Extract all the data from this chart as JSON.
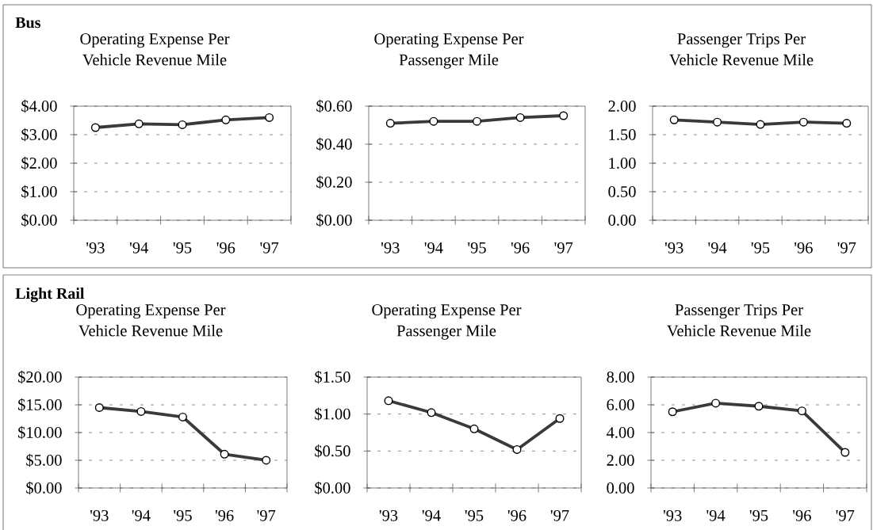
{
  "chart_data": [
    {
      "type": "line",
      "title": "Operating Expense Per Vehicle Revenue Mile",
      "annotations": [
        "Bus"
      ],
      "categories": [
        "'93",
        "'94",
        "'95",
        "'96",
        "'97"
      ],
      "values": [
        3.25,
        3.38,
        3.35,
        3.52,
        3.6
      ],
      "color": "#3a3a3a",
      "ylim": [
        0,
        4
      ],
      "yticks": [
        {
          "value": 0,
          "label": "$0.00"
        },
        {
          "value": 1,
          "label": "$1.00"
        },
        {
          "value": 2,
          "label": "$2.00"
        },
        {
          "value": 3,
          "label": "$3.00"
        },
        {
          "value": 4,
          "label": "$4.00"
        }
      ],
      "grid": "y",
      "marker": "circle"
    },
    {
      "type": "line",
      "title": "Operating Expense Per Passenger Mile",
      "categories": [
        "'93",
        "'94",
        "'95",
        "'96",
        "'97"
      ],
      "values": [
        0.51,
        0.52,
        0.52,
        0.54,
        0.55
      ],
      "color": "#3a3a3a",
      "ylim": [
        0,
        0.6
      ],
      "yticks": [
        {
          "value": 0,
          "label": "$0.00"
        },
        {
          "value": 0.2,
          "label": "$0.20"
        },
        {
          "value": 0.4,
          "label": "$0.40"
        },
        {
          "value": 0.6,
          "label": "$0.60"
        }
      ],
      "grid": "y",
      "marker": "circle"
    },
    {
      "type": "line",
      "title": "Passenger Trips Per Vehicle Revenue Mile",
      "categories": [
        "'93",
        "'94",
        "'95",
        "'96",
        "'97"
      ],
      "values": [
        1.76,
        1.72,
        1.68,
        1.72,
        1.7
      ],
      "color": "#3a3a3a",
      "ylim": [
        0,
        2
      ],
      "yticks": [
        {
          "value": 0,
          "label": "0.00"
        },
        {
          "value": 0.5,
          "label": "0.50"
        },
        {
          "value": 1,
          "label": "1.00"
        },
        {
          "value": 1.5,
          "label": "1.50"
        },
        {
          "value": 2,
          "label": "2.00"
        }
      ],
      "grid": "y",
      "marker": "circle"
    },
    {
      "type": "line",
      "title": "Operating Expense Per Vehicle Revenue Mile",
      "annotations": [
        "Light Rail"
      ],
      "categories": [
        "'93",
        "'94",
        "'95",
        "'96",
        "'97"
      ],
      "values": [
        14.5,
        13.8,
        12.8,
        6.1,
        5.0
      ],
      "color": "#3a3a3a",
      "ylim": [
        0,
        20
      ],
      "yticks": [
        {
          "value": 0,
          "label": "$0.00"
        },
        {
          "value": 5,
          "label": "$5.00"
        },
        {
          "value": 10,
          "label": "$10.00"
        },
        {
          "value": 15,
          "label": "$15.00"
        },
        {
          "value": 20,
          "label": "$20.00"
        }
      ],
      "grid": "y",
      "marker": "circle"
    },
    {
      "type": "line",
      "title": "Operating Expense Per Passenger Mile",
      "categories": [
        "'93",
        "'94",
        "'95",
        "'96",
        "'97"
      ],
      "values": [
        1.18,
        1.02,
        0.8,
        0.52,
        0.94
      ],
      "color": "#3a3a3a",
      "ylim": [
        0,
        1.5
      ],
      "yticks": [
        {
          "value": 0,
          "label": "$0.00"
        },
        {
          "value": 0.5,
          "label": "$0.50"
        },
        {
          "value": 1,
          "label": "$1.00"
        },
        {
          "value": 1.5,
          "label": "$1.50"
        }
      ],
      "grid": "y",
      "marker": "circle"
    },
    {
      "type": "line",
      "title": "Passenger Trips Per Vehicle Revenue Mile",
      "categories": [
        "'93",
        "'94",
        "'95",
        "'96",
        "'97"
      ],
      "values": [
        5.5,
        6.12,
        5.9,
        5.56,
        2.57
      ],
      "color": "#3a3a3a",
      "ylim": [
        0,
        8
      ],
      "yticks": [
        {
          "value": 0,
          "label": "0.00"
        },
        {
          "value": 2,
          "label": "2.00"
        },
        {
          "value": 4,
          "label": "4.00"
        },
        {
          "value": 6,
          "label": "6.00"
        },
        {
          "value": 8,
          "label": "8.00"
        }
      ],
      "grid": "y",
      "marker": "circle"
    }
  ]
}
